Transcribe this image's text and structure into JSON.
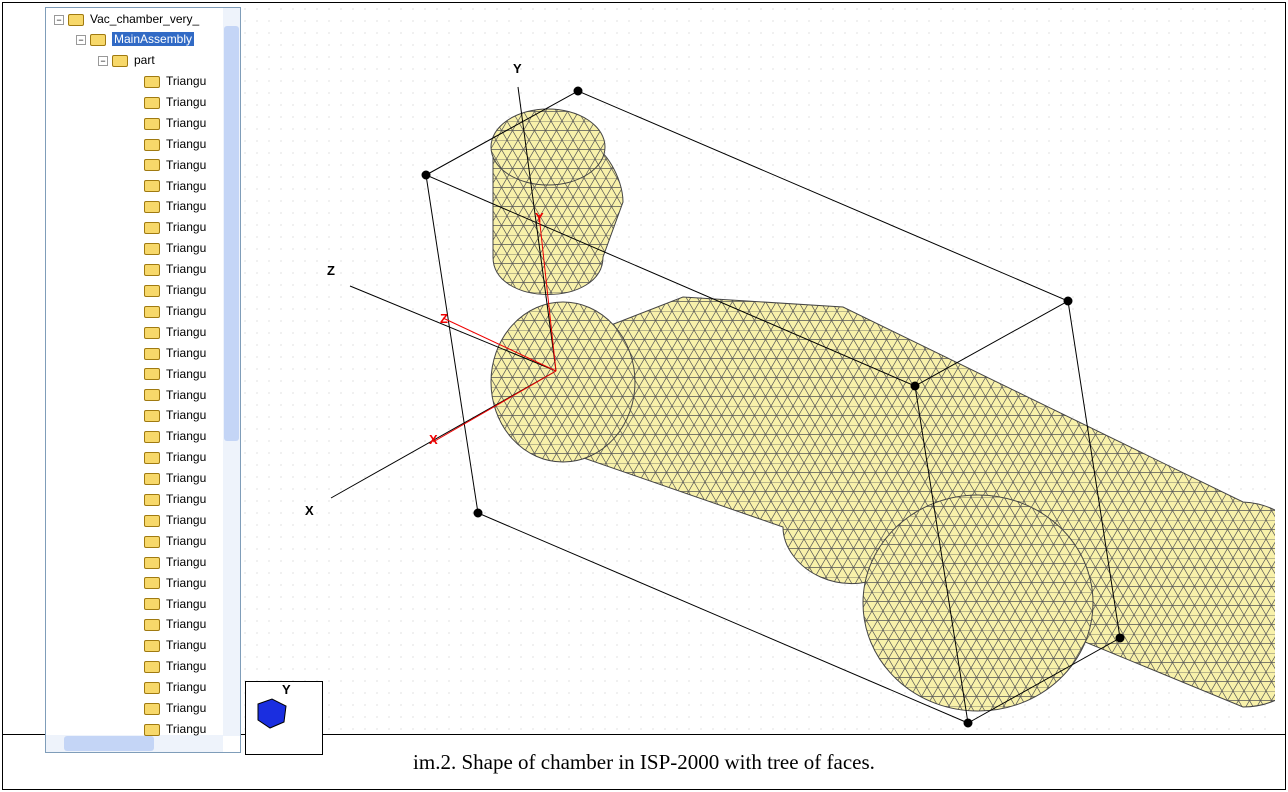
{
  "tree": {
    "root": "Vac_chamber_very_",
    "assembly": "MainAssembly",
    "part": "part",
    "faces": [
      "Triangu",
      "Triangu",
      "Triangu",
      "Triangu",
      "Triangu",
      "Triangu",
      "Triangu",
      "Triangu",
      "Triangu",
      "Triangu",
      "Triangu",
      "Triangu",
      "Triangu",
      "Triangu",
      "Triangu",
      "Triangu",
      "Triangu",
      "Triangu",
      "Triangu",
      "Triangu",
      "Triangu",
      "Triangu",
      "Triangu",
      "Triangu",
      "Triangu",
      "Triangu",
      "Triangu",
      "Triangu",
      "Triangu",
      "Triangu",
      "Triangu",
      "Triangu"
    ]
  },
  "axes": {
    "y": "Y",
    "z": "Z",
    "x": "X",
    "local_y": "Y",
    "local_z": "Z",
    "local_x": "X",
    "mini_y": "Y"
  },
  "caption": "im.2. Shape of chamber in ISP-2000 with tree of faces."
}
